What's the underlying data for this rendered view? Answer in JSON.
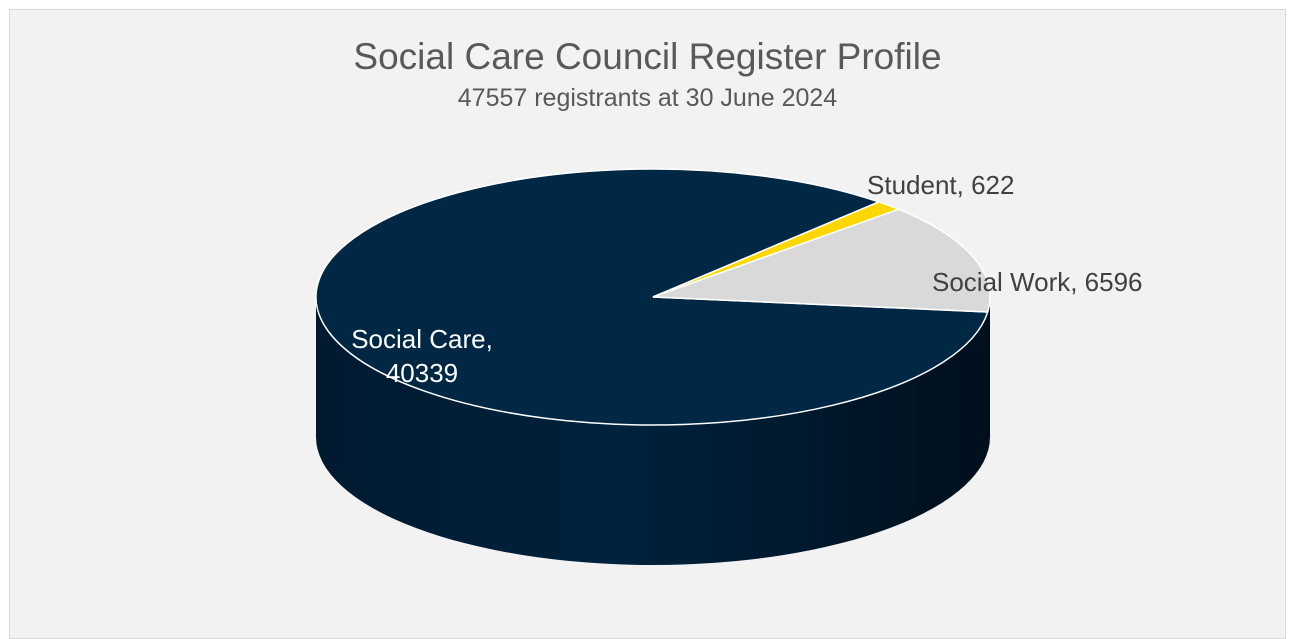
{
  "chart_data": {
    "type": "pie",
    "title": "Social Care Council Register Profile",
    "subtitle": "47557 registrants at 30 June 2024",
    "three_d": true,
    "slices": [
      {
        "name": "Social Care",
        "value": 40339,
        "color": "#002744",
        "label_lines": [
          "Social Care,",
          "40339"
        ],
        "label_color": "#ffffff"
      },
      {
        "name": "Student",
        "value": 622,
        "color": "#ffd700",
        "label_lines": [
          "Student, 622"
        ],
        "label_color": "#404040"
      },
      {
        "name": "Social Work",
        "value": 6596,
        "color": "#d9d9d9",
        "label_lines": [
          "Social Work, 6596"
        ],
        "label_color": "#404040"
      }
    ]
  }
}
